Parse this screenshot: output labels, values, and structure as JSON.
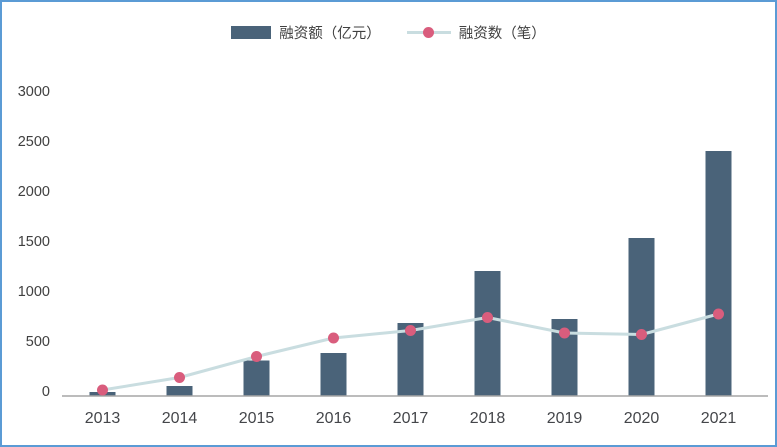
{
  "chart_data": {
    "type": "combo",
    "title": "",
    "xlabel": "",
    "ylabel": "",
    "categories": [
      "2013",
      "2014",
      "2015",
      "2016",
      "2017",
      "2018",
      "2019",
      "2020",
      "2021"
    ],
    "series": [
      {
        "name": "融资额（亿元）",
        "type": "bar",
        "color": "#4a6379",
        "values": [
          40,
          100,
          355,
          430,
          730,
          1250,
          770,
          1580,
          2450
        ]
      },
      {
        "name": "融资数（笔）",
        "type": "line",
        "color": "#c9dde0",
        "marker_color": "#d95d7d",
        "values": [
          60,
          185,
          395,
          580,
          655,
          785,
          630,
          615,
          820
        ]
      }
    ],
    "ylim": [
      0,
      3000
    ],
    "ytick_interval": 500,
    "ytick_labels": [
      "0",
      "500",
      "1000",
      "1500",
      "2000",
      "2500",
      "3000"
    ],
    "grid": false,
    "legend_position": "top-center",
    "colors": {
      "axis_line": "#a6a6a6",
      "tick_label": "#404040",
      "frame_border": "#5b9bd5",
      "background": "#ffffff"
    }
  }
}
